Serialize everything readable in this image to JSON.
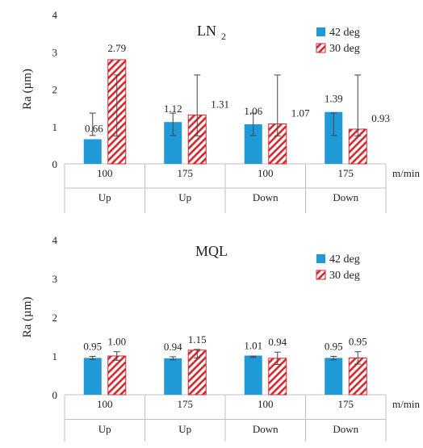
{
  "chart_data": [
    {
      "type": "bar",
      "title": "LN",
      "title_subscript": "2",
      "ylabel": "Ra (µm)",
      "x_unit": "m/min",
      "ylim": [
        0,
        4
      ],
      "yticks": [
        "0",
        "1",
        "2",
        "3",
        "4"
      ],
      "grid": false,
      "legend_position": "top-right",
      "categories": [
        "100",
        "175",
        "100",
        "175"
      ],
      "category_groups": [
        "Up",
        "Up",
        "Down",
        "Down"
      ],
      "series": [
        {
          "name": "42 deg",
          "color": "#1f9ad6",
          "pattern": "solid",
          "values": [
            0.66,
            1.12,
            1.06,
            1.39
          ],
          "labels": [
            "0.66",
            "1.12",
            "1.06",
            "1.39"
          ],
          "error_low": [
            0.76,
            0.76,
            0.76,
            0.76
          ],
          "error_high": [
            1.36,
            1.36,
            1.36,
            1.36
          ]
        },
        {
          "name": "30 deg",
          "color": "#d7262e",
          "pattern": "diagonal-hatch",
          "values": [
            2.79,
            1.31,
            1.07,
            0.93
          ],
          "labels": [
            "2.79",
            "1.31",
            "1.07",
            "0.93"
          ],
          "error_low": [
            0.75,
            0.75,
            0.75,
            0.75
          ],
          "error_high": [
            2.38,
            2.38,
            2.38,
            2.38
          ]
        }
      ]
    },
    {
      "type": "bar",
      "title": "MQL",
      "title_subscript": "",
      "ylabel": "Ra (µm)",
      "x_unit": "m/min",
      "ylim": [
        0,
        4
      ],
      "yticks": [
        "0",
        "1",
        "2",
        "3",
        "4"
      ],
      "grid": false,
      "legend_position": "top-right",
      "categories": [
        "100",
        "175",
        "100",
        "175"
      ],
      "category_groups": [
        "Up",
        "Up",
        "Down",
        "Down"
      ],
      "series": [
        {
          "name": "42 deg",
          "color": "#1f9ad6",
          "pattern": "solid",
          "values": [
            0.95,
            0.94,
            1.01,
            0.95
          ],
          "labels": [
            "0.95",
            "0.94",
            "1.01",
            "0.95"
          ],
          "error_low": [
            0.91,
            0.9,
            0.96,
            0.9
          ],
          "error_high": [
            0.99,
            0.98,
            1.0,
            0.99
          ]
        },
        {
          "name": "30 deg",
          "color": "#d7262e",
          "pattern": "diagonal-hatch",
          "values": [
            1.0,
            1.15,
            0.94,
            0.95
          ],
          "labels": [
            "1.00",
            "1.15",
            "0.94",
            "0.95"
          ],
          "error_low": [
            0.89,
            0.95,
            0.78,
            0.79
          ],
          "error_high": [
            1.11,
            1.17,
            1.1,
            1.11
          ]
        }
      ]
    }
  ]
}
